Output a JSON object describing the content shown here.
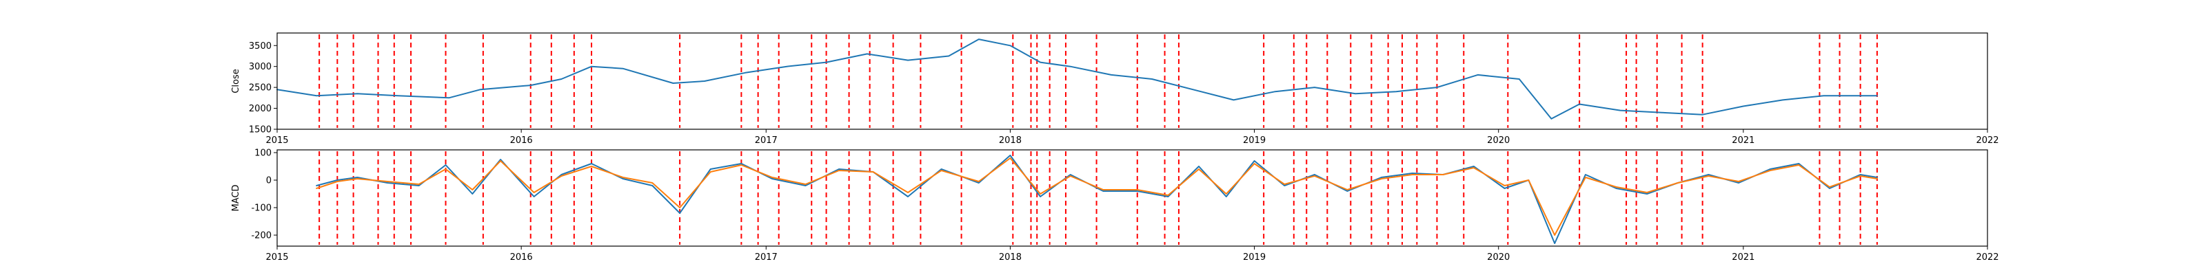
{
  "chart_data": [
    {
      "type": "line",
      "ylabel": "Close",
      "xlim": [
        "2015-01-01",
        "2022-01-01"
      ],
      "ylim": [
        1500,
        3800
      ],
      "yticks": [
        1500,
        2000,
        2500,
        3000,
        3500
      ],
      "xtick_labels": [
        "2015",
        "2016",
        "2017",
        "2018",
        "2019",
        "2020",
        "2021",
        "2022"
      ],
      "series": [
        {
          "color": "#1f77b4",
          "x": [
            "2015-01-01",
            "2015-03-01",
            "2015-05-01",
            "2015-07-01",
            "2015-09-15",
            "2015-11-01",
            "2016-01-15",
            "2016-03-01",
            "2016-04-15",
            "2016-06-01",
            "2016-08-15",
            "2016-10-01",
            "2016-12-01",
            "2017-02-01",
            "2017-04-01",
            "2017-06-01",
            "2017-08-01",
            "2017-10-01",
            "2017-11-15",
            "2018-01-01",
            "2018-02-15",
            "2018-04-01",
            "2018-06-01",
            "2018-08-01",
            "2018-10-01",
            "2018-12-01",
            "2019-02-01",
            "2019-04-01",
            "2019-06-01",
            "2019-08-01",
            "2019-10-01",
            "2019-12-01",
            "2020-02-01",
            "2020-03-20",
            "2020-05-01",
            "2020-07-01",
            "2020-09-01",
            "2020-11-01",
            "2021-01-01",
            "2021-03-01",
            "2021-05-01",
            "2021-07-20"
          ],
          "y": [
            2450,
            2300,
            2350,
            2300,
            2250,
            2450,
            2550,
            2700,
            3000,
            2950,
            2600,
            2650,
            2850,
            3000,
            3100,
            3300,
            3150,
            3250,
            3650,
            3500,
            3100,
            3000,
            2800,
            2700,
            2450,
            2200,
            2400,
            2500,
            2350,
            2400,
            2500,
            2800,
            2700,
            1750,
            2100,
            1950,
            1900,
            1850,
            2050,
            2200,
            2300,
            2300
          ]
        }
      ],
      "vlines": [
        "2015-03-05",
        "2015-04-01",
        "2015-04-25",
        "2015-06-01",
        "2015-06-25",
        "2015-07-20",
        "2015-09-10",
        "2015-11-05",
        "2016-01-15",
        "2016-02-15",
        "2016-03-20",
        "2016-04-15",
        "2016-08-25",
        "2016-11-25",
        "2016-12-20",
        "2017-01-20",
        "2017-03-10",
        "2017-04-01",
        "2017-05-05",
        "2017-06-05",
        "2017-07-10",
        "2017-08-20",
        "2017-10-20",
        "2018-01-05",
        "2018-02-01",
        "2018-02-10",
        "2018-03-01",
        "2018-03-25",
        "2018-05-10",
        "2018-07-10",
        "2018-08-20",
        "2018-09-10",
        "2019-01-15",
        "2019-03-01",
        "2019-03-20",
        "2019-04-20",
        "2019-05-25",
        "2019-06-25",
        "2019-07-20",
        "2019-08-10",
        "2019-09-01",
        "2019-10-01",
        "2019-11-10",
        "2020-01-15",
        "2020-05-01",
        "2020-07-10",
        "2020-07-25",
        "2020-08-25",
        "2020-10-01",
        "2020-11-01",
        "2021-04-25",
        "2021-05-25",
        "2021-06-25",
        "2021-07-20"
      ]
    },
    {
      "type": "line",
      "ylabel": "MACD",
      "xlim": [
        "2015-01-01",
        "2022-01-01"
      ],
      "ylim": [
        -240,
        110
      ],
      "yticks": [
        -200,
        -100,
        0,
        100
      ],
      "xtick_labels": [
        "2015",
        "2016",
        "2017",
        "2018",
        "2019",
        "2020",
        "2021",
        "2022"
      ],
      "series": [
        {
          "color": "#1f77b4",
          "x": [
            "2015-03-01",
            "2015-04-01",
            "2015-05-01",
            "2015-06-15",
            "2015-08-01",
            "2015-09-10",
            "2015-10-20",
            "2015-12-01",
            "2016-01-20",
            "2016-03-01",
            "2016-04-15",
            "2016-06-01",
            "2016-07-15",
            "2016-08-25",
            "2016-10-10",
            "2016-11-25",
            "2017-01-10",
            "2017-03-01",
            "2017-04-20",
            "2017-06-10",
            "2017-08-01",
            "2017-09-20",
            "2017-11-15",
            "2018-01-01",
            "2018-02-15",
            "2018-04-01",
            "2018-05-20",
            "2018-07-10",
            "2018-08-25",
            "2018-10-10",
            "2018-11-20",
            "2019-01-01",
            "2019-02-15",
            "2019-04-01",
            "2019-05-20",
            "2019-07-10",
            "2019-08-25",
            "2019-10-10",
            "2019-11-25",
            "2020-01-10",
            "2020-02-15",
            "2020-03-25",
            "2020-05-10",
            "2020-06-25",
            "2020-08-10",
            "2020-09-25",
            "2020-11-10",
            "2020-12-25",
            "2021-02-10",
            "2021-03-25",
            "2021-05-10",
            "2021-06-25",
            "2021-07-20"
          ],
          "y": [
            -20,
            0,
            10,
            -10,
            -20,
            55,
            -50,
            75,
            -60,
            20,
            60,
            5,
            -20,
            -120,
            40,
            60,
            5,
            -20,
            40,
            30,
            -60,
            40,
            -10,
            90,
            -60,
            20,
            -40,
            -40,
            -60,
            50,
            -60,
            70,
            -20,
            20,
            -40,
            10,
            25,
            20,
            50,
            -30,
            0,
            -230,
            20,
            -30,
            -50,
            -10,
            20,
            -10,
            40,
            60,
            -30,
            20,
            10
          ]
        },
        {
          "color": "#ff7f0e",
          "x": [
            "2015-03-01",
            "2015-04-01",
            "2015-05-01",
            "2015-06-15",
            "2015-08-01",
            "2015-09-10",
            "2015-10-20",
            "2015-12-01",
            "2016-01-20",
            "2016-03-01",
            "2016-04-15",
            "2016-06-01",
            "2016-07-15",
            "2016-08-25",
            "2016-10-10",
            "2016-11-25",
            "2017-01-10",
            "2017-03-01",
            "2017-04-20",
            "2017-06-10",
            "2017-08-01",
            "2017-09-20",
            "2017-11-15",
            "2018-01-01",
            "2018-02-15",
            "2018-04-01",
            "2018-05-20",
            "2018-07-10",
            "2018-08-25",
            "2018-10-10",
            "2018-11-20",
            "2019-01-01",
            "2019-02-15",
            "2019-04-01",
            "2019-05-20",
            "2019-07-10",
            "2019-08-25",
            "2019-10-10",
            "2019-11-25",
            "2020-01-10",
            "2020-02-15",
            "2020-03-25",
            "2020-05-10",
            "2020-06-25",
            "2020-08-10",
            "2020-09-25",
            "2020-11-10",
            "2020-12-25",
            "2021-02-10",
            "2021-03-25",
            "2021-05-10",
            "2021-06-25",
            "2021-07-20"
          ],
          "y": [
            -30,
            -5,
            5,
            -5,
            -15,
            40,
            -35,
            70,
            -45,
            15,
            50,
            10,
            -10,
            -100,
            30,
            55,
            10,
            -15,
            35,
            30,
            -45,
            35,
            -5,
            80,
            -50,
            15,
            -35,
            -35,
            -55,
            40,
            -50,
            60,
            -15,
            15,
            -35,
            5,
            20,
            20,
            45,
            -20,
            0,
            -200,
            10,
            -25,
            -45,
            -10,
            15,
            -5,
            35,
            55,
            -25,
            15,
            5
          ]
        }
      ],
      "vlines": [
        "2015-03-05",
        "2015-04-01",
        "2015-04-25",
        "2015-06-01",
        "2015-06-25",
        "2015-07-20",
        "2015-09-10",
        "2015-11-05",
        "2016-01-15",
        "2016-02-15",
        "2016-03-20",
        "2016-04-15",
        "2016-08-25",
        "2016-11-25",
        "2016-12-20",
        "2017-01-20",
        "2017-03-10",
        "2017-04-01",
        "2017-05-05",
        "2017-06-05",
        "2017-07-10",
        "2017-08-20",
        "2017-10-20",
        "2018-01-05",
        "2018-02-01",
        "2018-02-10",
        "2018-03-01",
        "2018-03-25",
        "2018-05-10",
        "2018-07-10",
        "2018-08-20",
        "2018-09-10",
        "2019-01-15",
        "2019-03-01",
        "2019-03-20",
        "2019-04-20",
        "2019-05-25",
        "2019-06-25",
        "2019-07-20",
        "2019-08-10",
        "2019-09-01",
        "2019-10-01",
        "2019-11-10",
        "2020-01-15",
        "2020-05-01",
        "2020-07-10",
        "2020-07-25",
        "2020-08-25",
        "2020-10-01",
        "2020-11-01",
        "2021-04-25",
        "2021-05-25",
        "2021-06-25",
        "2021-07-20"
      ]
    }
  ]
}
